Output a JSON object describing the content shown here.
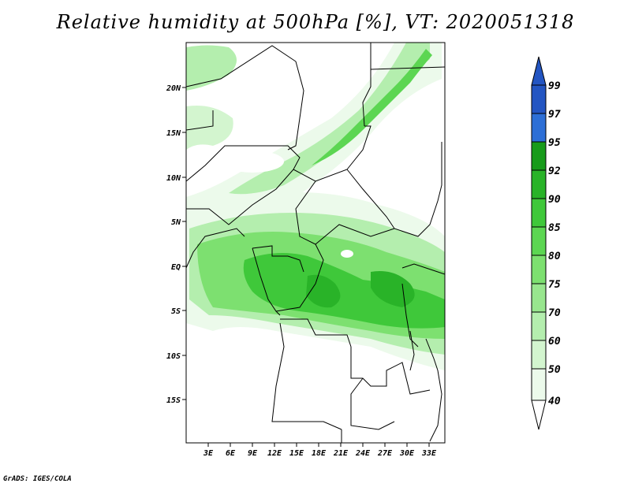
{
  "title": "Relative humidity at 500hPa [%], VT: 2020051318",
  "footer": "GrADS: IGES/COLA",
  "map": {
    "projection": "latlon",
    "lon_range": [
      0,
      35
    ],
    "lat_range": [
      -20,
      25
    ],
    "lon_ticks": [
      "3E",
      "6E",
      "9E",
      "12E",
      "15E",
      "18E",
      "21E",
      "24E",
      "27E",
      "30E",
      "33E"
    ],
    "lat_ticks": [
      "20N",
      "15N",
      "10N",
      "5N",
      "EQ",
      "5S",
      "10S",
      "15S"
    ],
    "field": "relative_humidity_500hPa",
    "valid_time": "2020051318"
  },
  "colorbar": {
    "levels": [
      "40",
      "50",
      "60",
      "70",
      "75",
      "80",
      "85",
      "90",
      "92",
      "95",
      "97",
      "99"
    ],
    "colors": [
      "#ecfaeb",
      "#d3f5cf",
      "#b4eeae",
      "#98e68e",
      "#7de070",
      "#5cd652",
      "#3fc83a",
      "#29b328",
      "#179b1a",
      "#3b8fe6",
      "#2d6fd6",
      "#2355c2"
    ],
    "under_color": "#ffffff",
    "over_color": "#2355c2"
  }
}
